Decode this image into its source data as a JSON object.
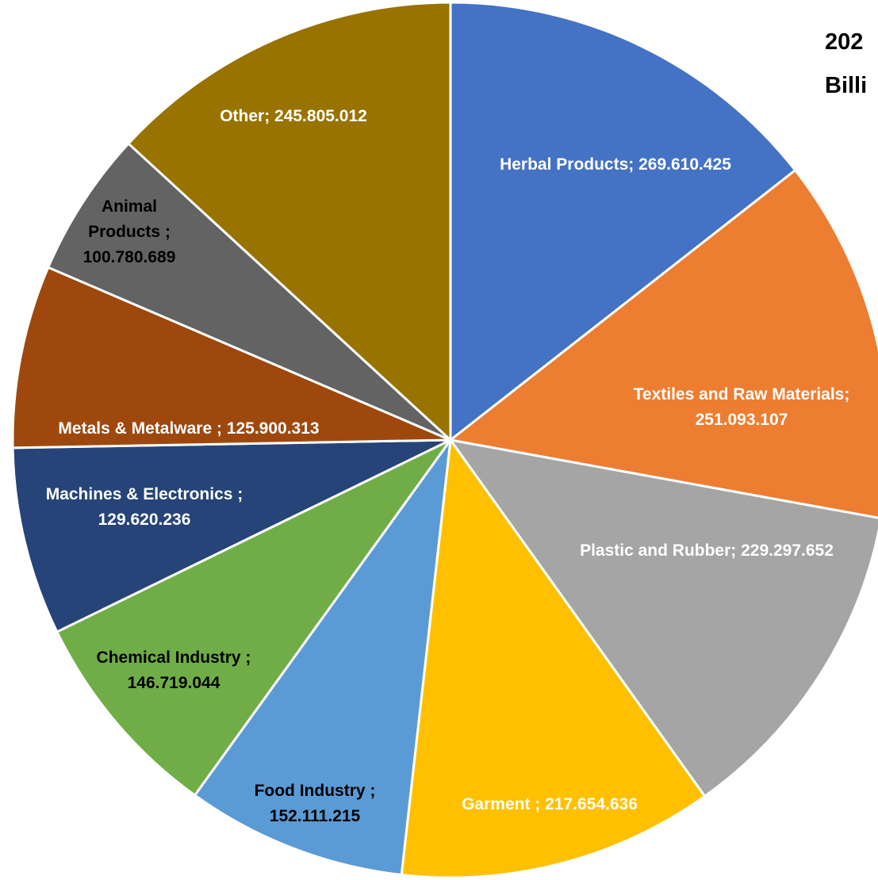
{
  "chart_data": {
    "type": "pie",
    "title_lines": [
      "202",
      "Billi"
    ],
    "start_angle_deg": 0,
    "direction": "clockwise",
    "slices": [
      {
        "name": "Herbal Products",
        "value": 269.610425,
        "label_lines": [
          "Herbal Products;  269.610.425"
        ],
        "color": "#4472C4",
        "label_color": "#FFFFFF"
      },
      {
        "name": "Textiles and Raw Materials",
        "value": 251.093107,
        "label_lines": [
          "Textiles and Raw Materials;",
          "251.093.107"
        ],
        "color": "#ED7D31",
        "label_color": "#FFFFFF"
      },
      {
        "name": "Plastic and Rubber",
        "value": 229.297652,
        "label_lines": [
          "Plastic and Rubber;  229.297.652"
        ],
        "color": "#A5A5A5",
        "label_color": "#FFFFFF"
      },
      {
        "name": "Garment",
        "value": 217.654636,
        "label_lines": [
          "Garment ;  217.654.636"
        ],
        "color": "#FFC000",
        "label_color": "#FFFFFF"
      },
      {
        "name": "Food Industry",
        "value": 152.111215,
        "label_lines": [
          "Food Industry ;",
          "152.111.215"
        ],
        "color": "#5B9BD5",
        "label_color": "#000000"
      },
      {
        "name": "Chemical Industry",
        "value": 146.719044,
        "label_lines": [
          "Chemical Industry ;",
          "146.719.044"
        ],
        "color": "#70AD47",
        "label_color": "#000000"
      },
      {
        "name": "Machines & Electronics",
        "value": 129.620236,
        "label_lines": [
          "Machines & Electronics ;",
          "129.620.236"
        ],
        "color": "#264478",
        "label_color": "#FFFFFF"
      },
      {
        "name": "Metals & Metalware",
        "value": 125.900313,
        "label_lines": [
          "Metals & Metalware ;  125.900.313"
        ],
        "color": "#9E480E",
        "label_color": "#FFFFFF"
      },
      {
        "name": "Animal Products",
        "value": 100.780689,
        "label_lines": [
          "Animal",
          "Products ;",
          "100.780.689"
        ],
        "color": "#636363",
        "label_color": "#000000"
      },
      {
        "name": "Other",
        "value": 245.805012,
        "label_lines": [
          "Other;  245.805.012"
        ],
        "color": "#997300",
        "label_color": "#FFFFFF"
      }
    ]
  }
}
